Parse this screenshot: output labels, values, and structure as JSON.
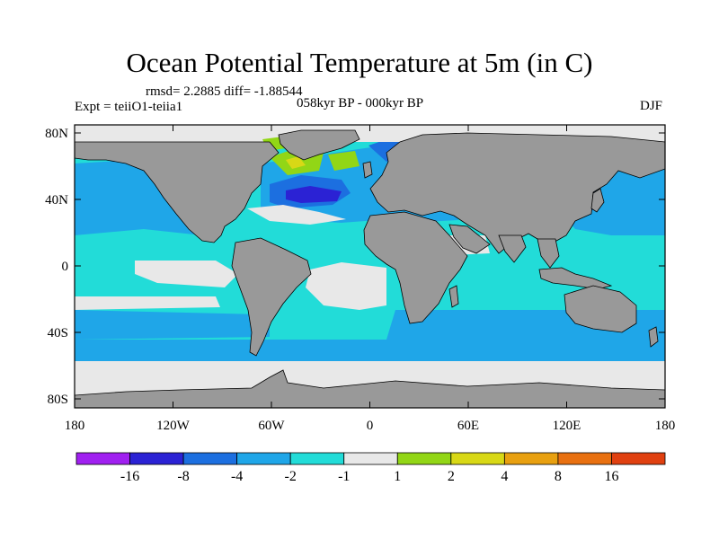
{
  "title": "Ocean Potential Temperature at 5m (in C)",
  "stats_text": "rmsd= 2.2885  diff= -1.88544",
  "period_text": "058kyr BP - 000kyr BP",
  "experiment_text": "Expt = teiiO1-teiia1",
  "season_text": "DJF",
  "lat_ticks": [
    "80N",
    "40N",
    "0",
    "40S",
    "80S"
  ],
  "lon_ticks": [
    "180",
    "120W",
    "60W",
    "0",
    "60E",
    "120E",
    "180"
  ],
  "colorbar": {
    "colors": [
      "#a020f0",
      "#2b22d4",
      "#1c6fe0",
      "#1fa6e8",
      "#22dcd8",
      "#e8e8e8",
      "#92d616",
      "#d8d816",
      "#e8a010",
      "#e87010",
      "#e04010"
    ],
    "labels": [
      "-16",
      "-8",
      "-4",
      "-2",
      "-1",
      "1",
      "2",
      "4",
      "8",
      "16"
    ]
  },
  "palette": {
    "land": "#999999",
    "ocean_base": "#22dcd8"
  }
}
